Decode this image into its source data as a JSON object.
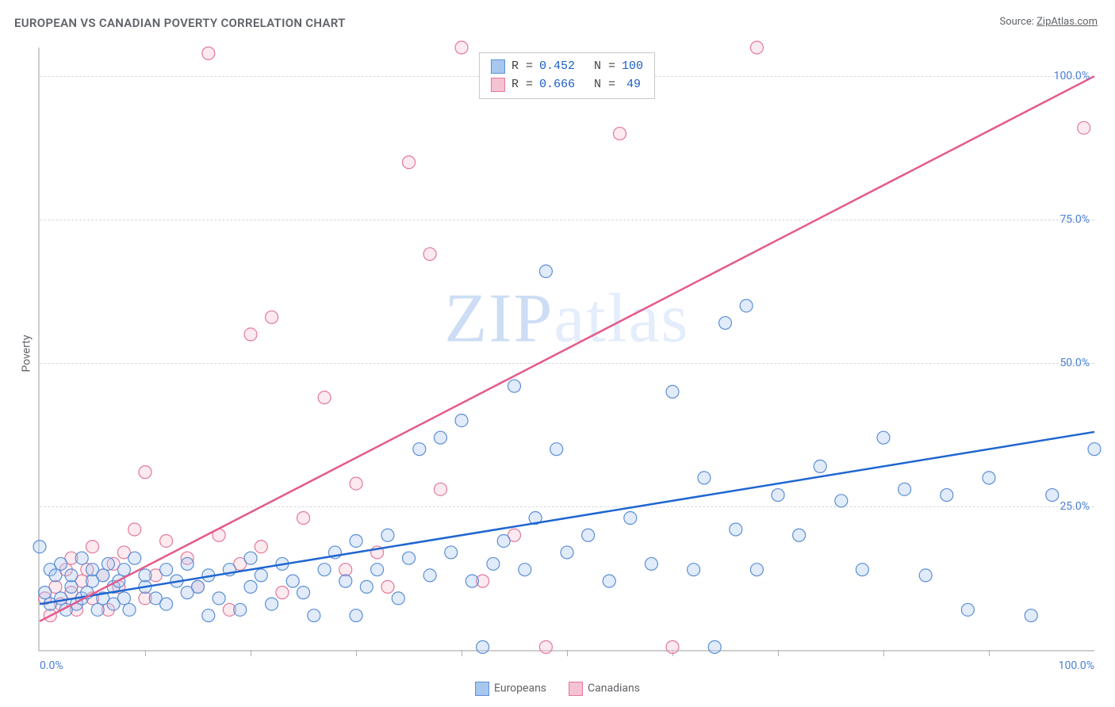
{
  "title": "EUROPEAN VS CANADIAN POVERTY CORRELATION CHART",
  "source_prefix": "Source: ",
  "source_name": "ZipAtlas.com",
  "ylabel": "Poverty",
  "watermark": {
    "strong": "ZIP",
    "light": "atlas"
  },
  "chart": {
    "type": "scatter",
    "background_color": "#ffffff",
    "grid_color": "#d9d9d9",
    "axis_color": "#cfcfcf",
    "tick_label_color": "#4a80d6",
    "label_fontsize": 14,
    "title_fontsize": 15,
    "xlim": [
      0,
      100
    ],
    "ylim": [
      0,
      105
    ],
    "ytick_labels": [
      "25.0%",
      "50.0%",
      "75.0%",
      "100.0%"
    ],
    "ytick_values": [
      25,
      50,
      75,
      100
    ],
    "xtick_label_left": "0.0%",
    "xtick_label_right": "100.0%",
    "xtick_minor": [
      10,
      20,
      30,
      40,
      50,
      60,
      70,
      80,
      90
    ],
    "marker_radius": 8,
    "marker_fill_opacity": 0.35,
    "marker_stroke_width": 1.2,
    "line_width": 2.5,
    "series": {
      "europeans": {
        "label": "Europeans",
        "fill": "#a8c7ef",
        "stroke": "#5b8fd6",
        "line_color": "#1f66d0",
        "R_label": "R =",
        "R": "0.452",
        "N_label": "N =",
        "N": "100",
        "trend": {
          "x1": 0,
          "y1": 8,
          "x2": 100,
          "y2": 38
        },
        "points": [
          [
            0,
            18
          ],
          [
            0.5,
            10
          ],
          [
            1,
            14
          ],
          [
            1,
            8
          ],
          [
            1.5,
            13
          ],
          [
            2,
            9
          ],
          [
            2,
            15
          ],
          [
            2.5,
            7
          ],
          [
            3,
            11
          ],
          [
            3,
            13
          ],
          [
            3.5,
            8
          ],
          [
            4,
            16
          ],
          [
            4,
            9
          ],
          [
            4.5,
            10
          ],
          [
            5,
            12
          ],
          [
            5,
            14
          ],
          [
            5.5,
            7
          ],
          [
            6,
            13
          ],
          [
            6,
            9
          ],
          [
            6.5,
            15
          ],
          [
            7,
            11
          ],
          [
            7,
            8
          ],
          [
            7.5,
            12
          ],
          [
            8,
            14
          ],
          [
            8,
            9
          ],
          [
            8.5,
            7
          ],
          [
            9,
            16
          ],
          [
            10,
            11
          ],
          [
            10,
            13
          ],
          [
            11,
            9
          ],
          [
            12,
            14
          ],
          [
            12,
            8
          ],
          [
            13,
            12
          ],
          [
            14,
            10
          ],
          [
            14,
            15
          ],
          [
            15,
            11
          ],
          [
            16,
            6
          ],
          [
            16,
            13
          ],
          [
            17,
            9
          ],
          [
            18,
            14
          ],
          [
            19,
            7
          ],
          [
            20,
            16
          ],
          [
            20,
            11
          ],
          [
            21,
            13
          ],
          [
            22,
            8
          ],
          [
            23,
            15
          ],
          [
            24,
            12
          ],
          [
            25,
            10
          ],
          [
            26,
            6
          ],
          [
            27,
            14
          ],
          [
            28,
            17
          ],
          [
            29,
            12
          ],
          [
            30,
            6
          ],
          [
            30,
            19
          ],
          [
            31,
            11
          ],
          [
            32,
            14
          ],
          [
            33,
            20
          ],
          [
            34,
            9
          ],
          [
            35,
            16
          ],
          [
            36,
            35
          ],
          [
            37,
            13
          ],
          [
            38,
            37
          ],
          [
            39,
            17
          ],
          [
            40,
            40
          ],
          [
            41,
            12
          ],
          [
            42,
            0.5
          ],
          [
            43,
            15
          ],
          [
            44,
            19
          ],
          [
            45,
            46
          ],
          [
            46,
            14
          ],
          [
            47,
            23
          ],
          [
            48,
            66
          ],
          [
            49,
            35
          ],
          [
            50,
            17
          ],
          [
            52,
            20
          ],
          [
            54,
            12
          ],
          [
            56,
            23
          ],
          [
            58,
            15
          ],
          [
            60,
            45
          ],
          [
            62,
            14
          ],
          [
            63,
            30
          ],
          [
            64,
            0.5
          ],
          [
            65,
            57
          ],
          [
            66,
            21
          ],
          [
            67,
            60
          ],
          [
            68,
            14
          ],
          [
            70,
            27
          ],
          [
            72,
            20
          ],
          [
            74,
            32
          ],
          [
            76,
            26
          ],
          [
            78,
            14
          ],
          [
            80,
            37
          ],
          [
            82,
            28
          ],
          [
            84,
            13
          ],
          [
            86,
            27
          ],
          [
            88,
            7
          ],
          [
            90,
            30
          ],
          [
            94,
            6
          ],
          [
            96,
            27
          ],
          [
            100,
            35
          ]
        ]
      },
      "canadians": {
        "label": "Canadians",
        "fill": "#f5c2d2",
        "stroke": "#e3789b",
        "line_color": "#e55a8a",
        "R_label": "R =",
        "R": "0.666",
        "N_label": "N =",
        "N": "49",
        "trend": {
          "x1": 0,
          "y1": 5,
          "x2": 100,
          "y2": 100
        },
        "points": [
          [
            0.5,
            9
          ],
          [
            1,
            6
          ],
          [
            1.5,
            11
          ],
          [
            2,
            8
          ],
          [
            2.5,
            14
          ],
          [
            3,
            10
          ],
          [
            3,
            16
          ],
          [
            3.5,
            7
          ],
          [
            4,
            12
          ],
          [
            4.5,
            14
          ],
          [
            5,
            18
          ],
          [
            5,
            9
          ],
          [
            6,
            13
          ],
          [
            6.5,
            7
          ],
          [
            7,
            15
          ],
          [
            7.5,
            11
          ],
          [
            8,
            17
          ],
          [
            9,
            21
          ],
          [
            10,
            9
          ],
          [
            10,
            31
          ],
          [
            11,
            13
          ],
          [
            12,
            19
          ],
          [
            14,
            16
          ],
          [
            15,
            11
          ],
          [
            16,
            104
          ],
          [
            17,
            20
          ],
          [
            18,
            7
          ],
          [
            19,
            15
          ],
          [
            20,
            55
          ],
          [
            21,
            18
          ],
          [
            22,
            58
          ],
          [
            23,
            10
          ],
          [
            25,
            23
          ],
          [
            27,
            44
          ],
          [
            29,
            14
          ],
          [
            30,
            29
          ],
          [
            32,
            17
          ],
          [
            33,
            11
          ],
          [
            35,
            85
          ],
          [
            37,
            69
          ],
          [
            38,
            28
          ],
          [
            40,
            105
          ],
          [
            42,
            12
          ],
          [
            45,
            20
          ],
          [
            48,
            0.5
          ],
          [
            55,
            90
          ],
          [
            60,
            0.5
          ],
          [
            68,
            105
          ],
          [
            99,
            91
          ]
        ]
      }
    }
  },
  "stats_box": {
    "border_color": "#c9c9c9",
    "font": "Courier New"
  },
  "bottom_legend": {
    "font_color": "#5f6368"
  }
}
